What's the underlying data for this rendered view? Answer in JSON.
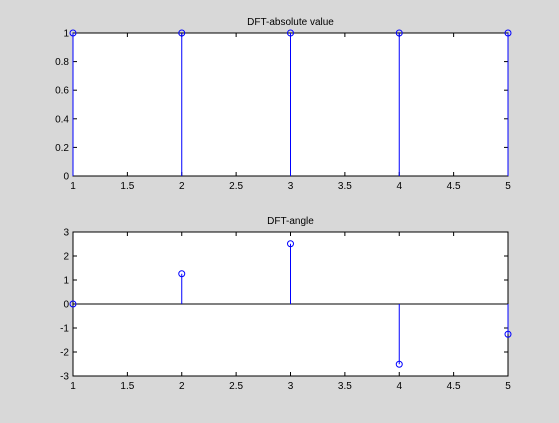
{
  "chart_data": [
    {
      "type": "stem",
      "title": "DFT-absolute value",
      "xlabel": "",
      "ylabel": "",
      "x": [
        1,
        2,
        3,
        4,
        5
      ],
      "y": [
        1,
        1,
        1,
        1,
        1
      ],
      "xlim": [
        1,
        5
      ],
      "ylim": [
        0,
        1
      ],
      "xticks": [
        1,
        1.5,
        2,
        2.5,
        3,
        3.5,
        4,
        4.5,
        5
      ],
      "yticks": [
        0,
        0.2,
        0.4,
        0.6,
        0.8,
        1
      ],
      "xtick_labels": [
        "1",
        "1.5",
        "2",
        "2.5",
        "3",
        "3.5",
        "4",
        "4.5",
        "5"
      ],
      "ytick_labels": [
        "0",
        "0.2",
        "0.4",
        "0.6",
        "0.8",
        "1"
      ],
      "grid": false,
      "color": "#0000ff"
    },
    {
      "type": "stem",
      "title": "DFT-angle",
      "xlabel": "",
      "ylabel": "",
      "x": [
        1,
        2,
        3,
        4,
        5
      ],
      "y": [
        0,
        1.26,
        2.51,
        -2.51,
        -1.26
      ],
      "xlim": [
        1,
        5
      ],
      "ylim": [
        -3,
        3
      ],
      "xticks": [
        1,
        1.5,
        2,
        2.5,
        3,
        3.5,
        4,
        4.5,
        5
      ],
      "yticks": [
        -3,
        -2,
        -1,
        0,
        1,
        2,
        3
      ],
      "xtick_labels": [
        "1",
        "1.5",
        "2",
        "2.5",
        "3",
        "3.5",
        "4",
        "4.5",
        "5"
      ],
      "ytick_labels": [
        "-3",
        "-2",
        "-1",
        "0",
        "1",
        "2",
        "3"
      ],
      "grid": false,
      "color": "#0000ff"
    }
  ]
}
